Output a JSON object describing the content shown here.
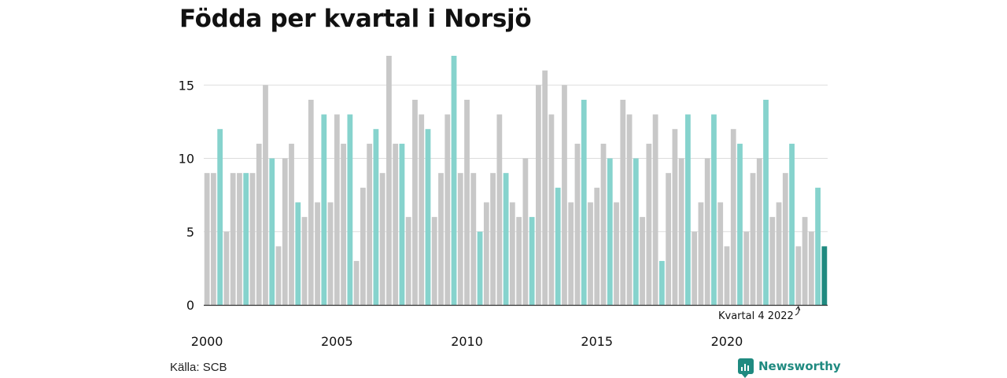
{
  "chart_data": {
    "type": "bar",
    "title": "Födda per kvartal i Norsjö",
    "categories": [
      "2000 K1",
      "2000 K2",
      "2000 K3",
      "2000 K4",
      "2001 K1",
      "2001 K2",
      "2001 K3",
      "2001 K4",
      "2002 K1",
      "2002 K2",
      "2002 K3",
      "2002 K4",
      "2003 K1",
      "2003 K2",
      "2003 K3",
      "2003 K4",
      "2004 K1",
      "2004 K2",
      "2004 K3",
      "2004 K4",
      "2005 K1",
      "2005 K2",
      "2005 K3",
      "2005 K4",
      "2006 K1",
      "2006 K2",
      "2006 K3",
      "2006 K4",
      "2007 K1",
      "2007 K2",
      "2007 K3",
      "2007 K4",
      "2008 K1",
      "2008 K2",
      "2008 K3",
      "2008 K4",
      "2009 K1",
      "2009 K2",
      "2009 K3",
      "2009 K4",
      "2010 K1",
      "2010 K2",
      "2010 K3",
      "2010 K4",
      "2011 K1",
      "2011 K2",
      "2011 K3",
      "2011 K4",
      "2012 K1",
      "2012 K2",
      "2012 K3",
      "2012 K4",
      "2013 K1",
      "2013 K2",
      "2013 K3",
      "2013 K4",
      "2014 K1",
      "2014 K2",
      "2014 K3",
      "2014 K4",
      "2015 K1",
      "2015 K2",
      "2015 K3",
      "2015 K4",
      "2016 K1",
      "2016 K2",
      "2016 K3",
      "2016 K4",
      "2017 K1",
      "2017 K2",
      "2017 K3",
      "2017 K4",
      "2018 K1",
      "2018 K2",
      "2018 K3",
      "2018 K4",
      "2019 K1",
      "2019 K2",
      "2019 K3",
      "2019 K4",
      "2020 K1",
      "2020 K2",
      "2020 K3",
      "2020 K4",
      "2021 K1",
      "2021 K2",
      "2021 K3",
      "2021 K4",
      "2022 K1",
      "2022 K2",
      "2022 K3",
      "2022 K4",
      "2023 K1",
      "2023 K2",
      "2023 K3",
      "2023 K4"
    ],
    "values": [
      9,
      9,
      12,
      5,
      9,
      9,
      9,
      9,
      11,
      15,
      10,
      4,
      10,
      11,
      7,
      6,
      14,
      7,
      13,
      7,
      13,
      11,
      13,
      3,
      8,
      11,
      12,
      9,
      17,
      11,
      11,
      6,
      14,
      13,
      12,
      6,
      9,
      13,
      17,
      9,
      14,
      9,
      5,
      7,
      9,
      13,
      9,
      7,
      6,
      10,
      6,
      15,
      16,
      13,
      8,
      15,
      7,
      11,
      14,
      7,
      8,
      11,
      10,
      7,
      14,
      13,
      10,
      6,
      11,
      13,
      3,
      9,
      12,
      10,
      13,
      5,
      7,
      10,
      13,
      7,
      4,
      12,
      11,
      5,
      9,
      10,
      14,
      6,
      7,
      9,
      11,
      4,
      6,
      5,
      8,
      4
    ],
    "highlight_quarter": "K3",
    "highlight_last": true,
    "x_tick_labels": [
      "2000",
      "2005",
      "2010",
      "2015",
      "2020"
    ],
    "y_ticks": [
      0,
      5,
      10,
      15
    ],
    "ylim": [
      0,
      17
    ],
    "grid": true,
    "annotation": "Kvartal 4 2022",
    "colors": {
      "default": "#c8c8c8",
      "highlight": "#86d3cd",
      "latest": "#1f8a80",
      "grid": "#dddddd",
      "axis": "#333333",
      "text": "#111111"
    }
  },
  "source": "Källa: SCB",
  "brand": "Newsworthy"
}
